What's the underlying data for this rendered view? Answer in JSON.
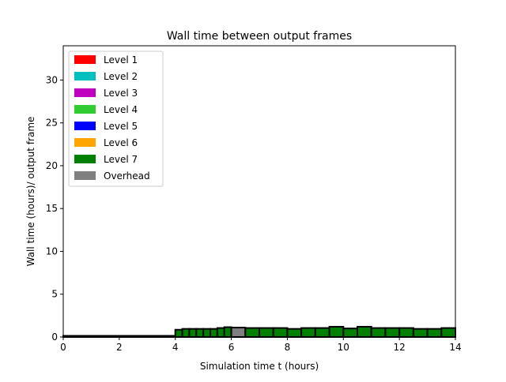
{
  "chart_data": {
    "type": "bar",
    "title": "Wall time between output frames",
    "xlabel": "Simulation time t (hours)",
    "ylabel": "Wall time (hours)/ output frame",
    "xlim": [
      0,
      14
    ],
    "ylim": [
      0,
      34
    ],
    "xticks": [
      0,
      2,
      4,
      6,
      8,
      10,
      12,
      14
    ],
    "yticks": [
      0,
      5,
      10,
      15,
      20,
      25,
      30
    ],
    "grid": false,
    "legend_position": "top-left",
    "legend": [
      {
        "label": "Level 1",
        "color": "#ff0000"
      },
      {
        "label": "Level 2",
        "color": "#00bfbf"
      },
      {
        "label": "Level 3",
        "color": "#bf00bf"
      },
      {
        "label": "Level 4",
        "color": "#32cd32"
      },
      {
        "label": "Level 5",
        "color": "#0000ff"
      },
      {
        "label": "Level 6",
        "color": "#ffa500"
      },
      {
        "label": "Level 7",
        "color": "#008000"
      },
      {
        "label": "Overhead",
        "color": "#808080"
      }
    ],
    "frames": [
      {
        "start": 0.0,
        "end": 0.25,
        "level7": 0.0,
        "overhead": 0.0
      },
      {
        "start": 0.25,
        "end": 0.5,
        "level7": 0.0,
        "overhead": 0.0
      },
      {
        "start": 0.5,
        "end": 0.75,
        "level7": 0.0,
        "overhead": 0.0
      },
      {
        "start": 0.75,
        "end": 1.0,
        "level7": 0.0,
        "overhead": 0.0
      },
      {
        "start": 1.0,
        "end": 1.25,
        "level7": 0.0,
        "overhead": 0.0
      },
      {
        "start": 1.25,
        "end": 1.5,
        "level7": 0.0,
        "overhead": 0.0
      },
      {
        "start": 1.5,
        "end": 1.75,
        "level7": 0.0,
        "overhead": 0.0
      },
      {
        "start": 1.75,
        "end": 2.0,
        "level7": 0.0,
        "overhead": 0.0
      },
      {
        "start": 2.0,
        "end": 2.25,
        "level7": 0.0,
        "overhead": 0.0
      },
      {
        "start": 2.25,
        "end": 2.5,
        "level7": 0.0,
        "overhead": 0.0
      },
      {
        "start": 2.5,
        "end": 2.75,
        "level7": 0.0,
        "overhead": 0.0
      },
      {
        "start": 2.75,
        "end": 3.0,
        "level7": 0.0,
        "overhead": 0.0
      },
      {
        "start": 3.0,
        "end": 3.25,
        "level7": 0.0,
        "overhead": 0.0
      },
      {
        "start": 3.25,
        "end": 3.5,
        "level7": 0.0,
        "overhead": 0.0
      },
      {
        "start": 3.5,
        "end": 3.75,
        "level7": 0.0,
        "overhead": 0.0
      },
      {
        "start": 3.75,
        "end": 4.0,
        "level7": 0.0,
        "overhead": 0.0
      },
      {
        "start": 4.0,
        "end": 4.25,
        "level7": 0.85,
        "overhead": 0.0
      },
      {
        "start": 4.25,
        "end": 4.5,
        "level7": 0.95,
        "overhead": 0.0
      },
      {
        "start": 4.5,
        "end": 4.75,
        "level7": 0.95,
        "overhead": 0.0
      },
      {
        "start": 4.75,
        "end": 5.0,
        "level7": 0.95,
        "overhead": 0.0
      },
      {
        "start": 5.0,
        "end": 5.25,
        "level7": 0.95,
        "overhead": 0.0
      },
      {
        "start": 5.25,
        "end": 5.5,
        "level7": 0.95,
        "overhead": 0.0
      },
      {
        "start": 5.5,
        "end": 5.75,
        "level7": 1.05,
        "overhead": 0.0
      },
      {
        "start": 5.75,
        "end": 6.0,
        "level7": 1.15,
        "overhead": 0.0
      },
      {
        "start": 6.0,
        "end": 6.5,
        "level7": 0.0,
        "overhead": 1.1
      },
      {
        "start": 6.5,
        "end": 7.0,
        "level7": 1.05,
        "overhead": 0.0
      },
      {
        "start": 7.0,
        "end": 7.5,
        "level7": 1.05,
        "overhead": 0.0
      },
      {
        "start": 7.5,
        "end": 8.0,
        "level7": 1.05,
        "overhead": 0.0
      },
      {
        "start": 8.0,
        "end": 8.5,
        "level7": 0.95,
        "overhead": 0.0
      },
      {
        "start": 8.5,
        "end": 9.0,
        "level7": 1.05,
        "overhead": 0.0
      },
      {
        "start": 9.0,
        "end": 9.5,
        "level7": 1.05,
        "overhead": 0.0
      },
      {
        "start": 9.5,
        "end": 10.0,
        "level7": 1.2,
        "overhead": 0.0
      },
      {
        "start": 10.0,
        "end": 10.5,
        "level7": 1.0,
        "overhead": 0.0
      },
      {
        "start": 10.5,
        "end": 11.0,
        "level7": 1.2,
        "overhead": 0.0
      },
      {
        "start": 11.0,
        "end": 11.5,
        "level7": 1.05,
        "overhead": 0.0
      },
      {
        "start": 11.5,
        "end": 12.0,
        "level7": 1.05,
        "overhead": 0.0
      },
      {
        "start": 12.0,
        "end": 12.5,
        "level7": 1.05,
        "overhead": 0.0
      },
      {
        "start": 12.5,
        "end": 13.0,
        "level7": 0.95,
        "overhead": 0.0
      },
      {
        "start": 13.0,
        "end": 13.5,
        "level7": 0.95,
        "overhead": 0.0
      },
      {
        "start": 13.5,
        "end": 14.0,
        "level7": 1.05,
        "overhead": 0.0
      }
    ]
  }
}
